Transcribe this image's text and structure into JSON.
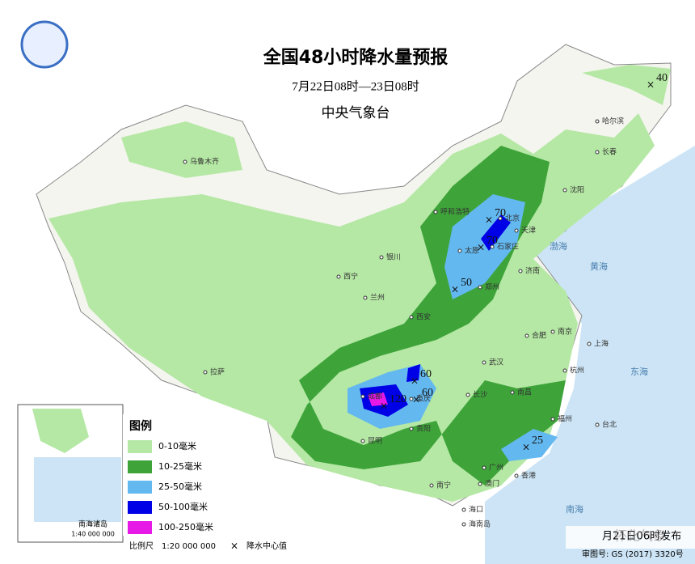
{
  "header": {
    "title": "全国48小时降水量预报",
    "period": "7月22日08时—23日08时",
    "issuer": "中央气象台"
  },
  "legend": {
    "title": "图例",
    "items": [
      {
        "label": "0-10毫米",
        "color": "#b5e8a4"
      },
      {
        "label": "10-25毫米",
        "color": "#3ea43a"
      },
      {
        "label": "25-50毫米",
        "color": "#63b8f0"
      },
      {
        "label": "50-100毫米",
        "color": "#0000e6"
      },
      {
        "label": "100-250毫米",
        "color": "#e619e6"
      }
    ]
  },
  "centers": [
    40,
    70,
    70,
    50,
    60,
    60,
    120,
    25
  ],
  "cities": [
    "乌鲁木齐",
    "哈尔滨",
    "长春",
    "沈阳",
    "呼和浩特",
    "北京",
    "天津",
    "石家庄",
    "太原",
    "济南",
    "银川",
    "西宁",
    "兰州",
    "郑州",
    "西安",
    "合肥",
    "南京",
    "上海",
    "武汉",
    "杭州",
    "成都",
    "重庆",
    "长沙",
    "南昌",
    "贵阳",
    "福州",
    "台北",
    "拉萨",
    "昆明",
    "南宁",
    "广州",
    "香港",
    "澳门",
    "海口",
    "海南岛"
  ],
  "seas": [
    "渤海",
    "黄海",
    "东海",
    "南海"
  ],
  "inset": {
    "title": "南海诸岛",
    "scale": "1:40 000 000"
  },
  "footer": {
    "scale_label": "比例尺",
    "scale": "1:20 000 000",
    "center_mark": "×",
    "center_label": "降水中心值",
    "approval": "审图号: GS (2017) 3320号",
    "published": "月21日06时发布",
    "watermark": "怀化气象"
  }
}
